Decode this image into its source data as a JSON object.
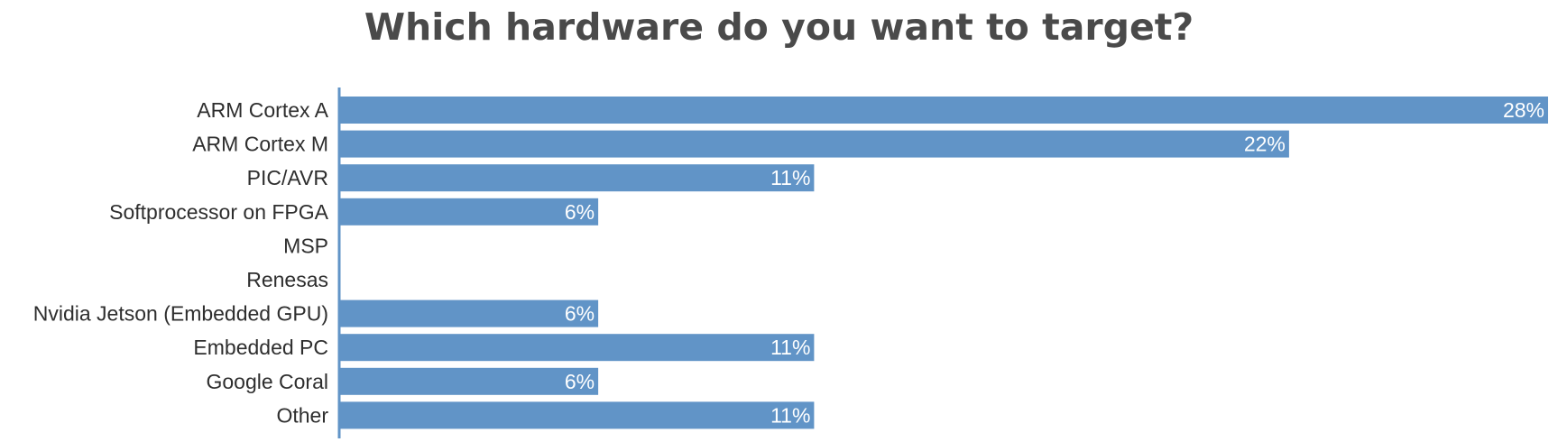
{
  "chart_data": {
    "type": "bar",
    "orientation": "horizontal",
    "title": "Which hardware do you want to target?",
    "categories": [
      "ARM Cortex A",
      "ARM Cortex M",
      "PIC/AVR",
      "Softprocessor on FPGA",
      "MSP",
      "Renesas",
      "Nvidia Jetson (Embedded GPU)",
      "Embedded PC",
      "Google Coral",
      "Other"
    ],
    "values": [
      28,
      22,
      11,
      6,
      0,
      0,
      6,
      11,
      6,
      11
    ],
    "value_labels": [
      "28%",
      "22%",
      "11%",
      "6%",
      "",
      "",
      "6%",
      "11%",
      "6%",
      "11%"
    ],
    "unit": "%",
    "xlim": [
      0,
      28
    ],
    "grid": false,
    "legend": "none",
    "colors": {
      "bar": "#6194c7",
      "axis": "#6194c7",
      "title": "#4a4a4a",
      "label": "#2e2e2e",
      "value_label": "#ffffff"
    }
  }
}
